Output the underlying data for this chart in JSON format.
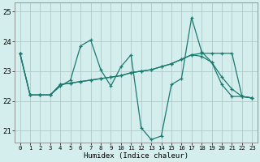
{
  "xlabel": "Humidex (Indice chaleur)",
  "bg_color": "#d4eeee",
  "grid_color": "#b0c8c8",
  "line_color": "#1a7a6e",
  "xlim": [
    -0.5,
    23.5
  ],
  "ylim": [
    20.6,
    25.3
  ],
  "yticks": [
    21,
    22,
    23,
    24,
    25
  ],
  "xticks": [
    0,
    1,
    2,
    3,
    4,
    5,
    6,
    7,
    8,
    9,
    10,
    11,
    12,
    13,
    14,
    15,
    16,
    17,
    18,
    19,
    20,
    21,
    22,
    23
  ],
  "s1_y": [
    23.6,
    22.2,
    22.2,
    22.2,
    22.5,
    22.7,
    23.85,
    24.05,
    23.05,
    22.5,
    23.15,
    23.55,
    21.1,
    20.7,
    20.82,
    22.55,
    22.75,
    24.8,
    23.65,
    23.3,
    22.55,
    22.15,
    22.15,
    22.1
  ],
  "s2_y": [
    23.6,
    22.2,
    22.2,
    22.2,
    22.55,
    22.6,
    22.65,
    22.7,
    22.75,
    22.8,
    22.85,
    22.95,
    23.0,
    23.05,
    23.15,
    23.25,
    23.4,
    23.55,
    23.6,
    23.6,
    23.6,
    23.6,
    22.15,
    22.1
  ],
  "s3_y": [
    23.6,
    22.2,
    22.2,
    22.2,
    22.55,
    22.6,
    22.65,
    22.7,
    22.75,
    22.8,
    22.85,
    22.95,
    23.0,
    23.05,
    23.15,
    23.25,
    23.4,
    23.55,
    23.5,
    23.3,
    22.8,
    22.4,
    22.15,
    22.1
  ]
}
